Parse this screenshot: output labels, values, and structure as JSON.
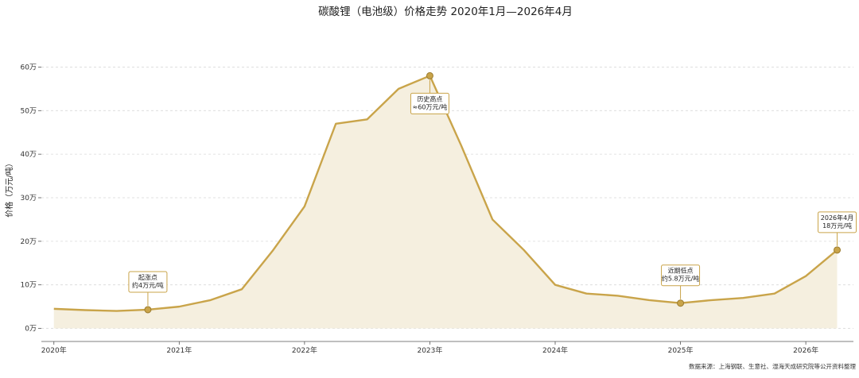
{
  "chart_data": {
    "type": "line",
    "title": "碳酸锂（电池级）价格走势  2020年1月—2026年4月",
    "ylabel": "价格（万元/吨）",
    "xlabel": "",
    "ylim": [
      -3,
      63
    ],
    "xlim": [
      2019.9,
      2026.38
    ],
    "yticks": [
      {
        "value": 0,
        "label": "0万"
      },
      {
        "value": 10,
        "label": "10万"
      },
      {
        "value": 20,
        "label": "20万"
      },
      {
        "value": 30,
        "label": "30万"
      },
      {
        "value": 40,
        "label": "40万"
      },
      {
        "value": 50,
        "label": "50万"
      },
      {
        "value": 60,
        "label": "60万"
      }
    ],
    "xticks": [
      {
        "value": 2020,
        "label": "2020年"
      },
      {
        "value": 2021,
        "label": "2021年"
      },
      {
        "value": 2022,
        "label": "2022年"
      },
      {
        "value": 2023,
        "label": "2023年"
      },
      {
        "value": 2024,
        "label": "2024年"
      },
      {
        "value": 2025,
        "label": "2025年"
      },
      {
        "value": 2026,
        "label": "2026年"
      }
    ],
    "grid": true,
    "color": "#c9a44a",
    "fill_color": "#f5efdf",
    "series": [
      {
        "x": [
          "2020-01",
          "2020-04",
          "2020-07",
          "2020-10",
          "2021-01",
          "2021-04",
          "2021-07",
          "2021-10",
          "2022-01",
          "2022-04",
          "2022-07",
          "2022-10",
          "2023-01",
          "2023-04",
          "2023-07",
          "2023-10",
          "2024-01",
          "2024-04",
          "2024-07",
          "2024-10",
          "2025-01",
          "2025-04",
          "2025-07",
          "2025-10",
          "2026-01",
          "2026-04"
        ],
        "values": [
          4.5,
          4.2,
          4.0,
          4.3,
          5.0,
          6.5,
          9.0,
          18.0,
          28.0,
          47.0,
          48.0,
          55.0,
          58.0,
          42.0,
          25.0,
          18.0,
          10.0,
          8.0,
          7.5,
          6.5,
          5.8,
          6.5,
          7.0,
          8.0,
          12.0,
          18.0
        ]
      }
    ],
    "annotations": [
      {
        "x": "2020-10",
        "y": 4.3,
        "lines": [
          "起涨点",
          "约4万元/吨"
        ],
        "position": "above"
      },
      {
        "x": "2023-01",
        "y": 58.0,
        "lines": [
          "历史高点",
          "≈60万元/吨"
        ],
        "position": "below"
      },
      {
        "x": "2025-01",
        "y": 5.8,
        "lines": [
          "近期低点",
          "约5.8万元/吨"
        ],
        "position": "above"
      },
      {
        "x": "2026-04",
        "y": 18.0,
        "lines": [
          "2026年4月",
          "18万元/吨"
        ],
        "position": "above"
      }
    ],
    "source": "数据来源：上海钢联、生意社、湿海天成研究院等公开资料整理"
  }
}
